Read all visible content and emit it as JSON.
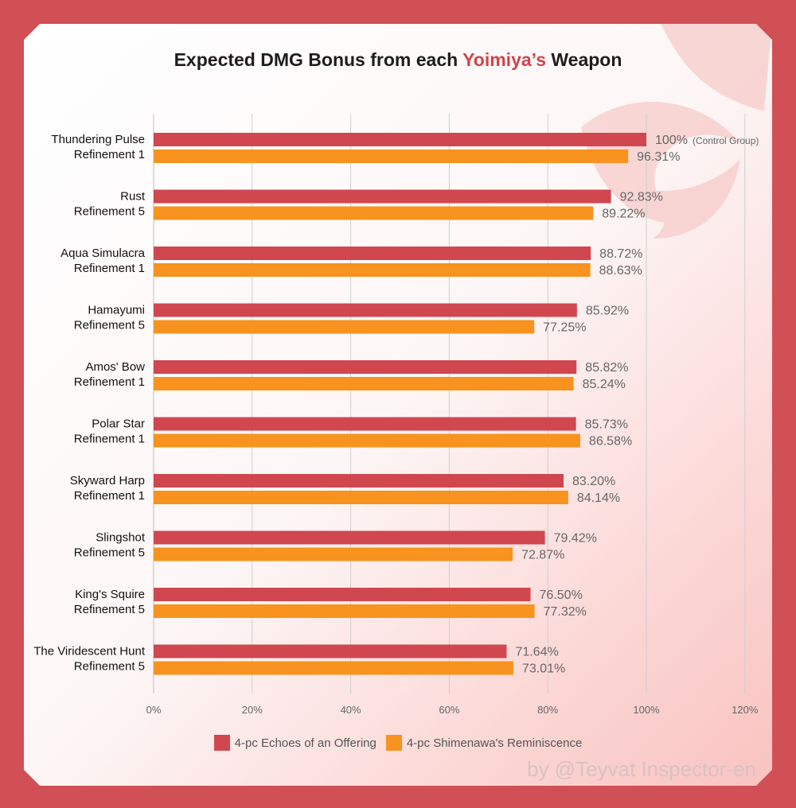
{
  "title": {
    "prefix": "Expected DMG Bonus from each",
    "highlight": "Yoimiya’s",
    "suffix": "Weapon"
  },
  "colors": {
    "frame": "#d05055",
    "echoes": "#d0474f",
    "shimenawa": "#f7931e",
    "highlight": "#d0444b"
  },
  "chart_data": {
    "type": "bar",
    "orientation": "horizontal",
    "title": "Expected DMG Bonus from each Yoimiya’s Weapon",
    "xlabel": "",
    "ylabel": "",
    "xlim": [
      0,
      120
    ],
    "x_ticks": [
      0,
      20,
      40,
      60,
      80,
      100,
      120
    ],
    "x_tick_labels": [
      "0%",
      "20%",
      "40%",
      "60%",
      "80%",
      "100%",
      "120%"
    ],
    "grid": true,
    "legend_position": "bottom",
    "categories": [
      [
        "Thundering Pulse",
        "Refinement 1"
      ],
      [
        "Rust",
        "Refinement 5"
      ],
      [
        "Aqua Simulacra",
        "Refinement 1"
      ],
      [
        "Hamayumi",
        "Refinement 5"
      ],
      [
        "Amos' Bow",
        "Refinement 1"
      ],
      [
        "Polar Star",
        "Refinement 1"
      ],
      [
        "Skyward Harp",
        "Refinement 1"
      ],
      [
        "Slingshot",
        "Refinement 5"
      ],
      [
        "King's Squire",
        "Refinement 5"
      ],
      [
        "The Viridescent Hunt",
        "Refinement 5"
      ]
    ],
    "series": [
      {
        "name": "4-pc Echoes of an Offering",
        "values": [
          100,
          92.83,
          88.72,
          85.92,
          85.82,
          85.73,
          83.2,
          79.42,
          76.5,
          71.64
        ],
        "labels": [
          "100%",
          "92.83%",
          "88.72%",
          "85.92%",
          "85.82%",
          "85.73%",
          "83.20%",
          "79.42%",
          "76.50%",
          "71.64%"
        ]
      },
      {
        "name": "4-pc Shimenawa's Reminiscence",
        "values": [
          96.31,
          89.22,
          88.63,
          77.25,
          85.24,
          86.58,
          84.14,
          72.87,
          77.32,
          73.01
        ],
        "labels": [
          "96.31%",
          "89.22%",
          "88.63%",
          "77.25%",
          "85.24%",
          "86.58%",
          "84.14%",
          "72.87%",
          "77.32%",
          "73.01%"
        ]
      }
    ],
    "annotations": [
      {
        "text": "(Control Group)"
      }
    ]
  },
  "legend": {
    "echoes": "4-pc Echoes of an Offering",
    "shimenawa": "4-pc Shimenawa's Reminiscence"
  },
  "watermark": "by @Teyvat Inspector-en"
}
